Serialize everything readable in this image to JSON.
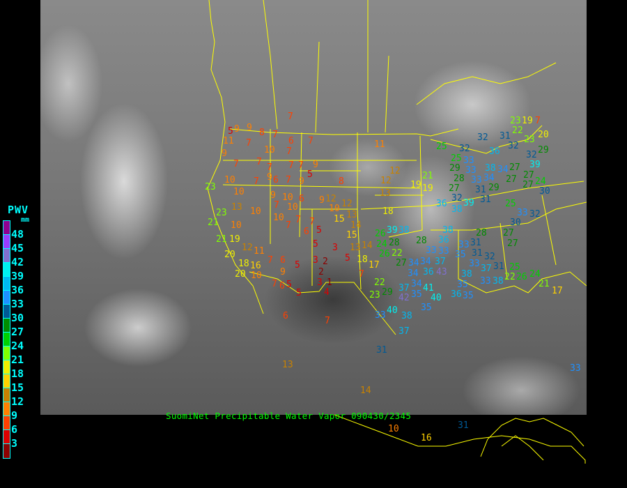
{
  "caption": "SuomiNet Precipitable Water Vapor 090430/2345",
  "legend": {
    "title": "PWV",
    "unit": "mm",
    "labels": [
      "48",
      "45",
      "42",
      "39",
      "36",
      "33",
      "30",
      "27",
      "24",
      "21",
      "18",
      "15",
      "12",
      "9",
      "6",
      "3"
    ],
    "colors_top_to_bottom": [
      "#900090",
      "#9a3cff",
      "#8070d0",
      "#00f0f0",
      "#00b8f0",
      "#1e90ff",
      "#005a96",
      "#008c00",
      "#00d000",
      "#80ff00",
      "#f0f000",
      "#ffd200",
      "#c88200",
      "#ff8000",
      "#ff4000",
      "#dc0000",
      "#8c0000"
    ]
  },
  "map": {
    "border_color": "#ffff00",
    "stations": [
      7,
      9,
      5,
      9,
      8,
      7,
      6,
      7,
      11,
      7,
      10,
      9,
      7,
      7,
      7,
      7,
      7,
      7,
      9,
      9,
      6,
      7,
      7,
      5,
      9,
      8,
      11,
      12,
      12,
      13,
      18,
      23,
      10,
      10,
      13,
      10,
      23,
      21,
      10,
      21,
      19,
      9,
      10,
      6,
      9,
      12,
      10,
      12,
      7,
      10,
      15,
      13,
      10,
      7,
      7,
      7,
      6,
      5,
      5,
      3,
      3,
      2,
      2,
      3,
      1,
      4,
      5,
      13,
      14,
      18,
      17,
      7,
      15,
      14,
      12,
      11,
      20,
      18,
      16,
      20,
      10,
      7,
      6,
      5,
      9,
      7,
      6,
      5,
      5,
      22,
      23,
      29,
      37,
      6,
      7,
      13,
      14,
      10,
      16,
      31,
      23,
      19,
      7,
      22,
      20,
      32,
      31,
      32,
      23,
      32,
      25,
      36,
      25,
      33,
      29,
      32,
      39,
      29,
      33,
      28,
      33,
      34,
      38,
      34,
      27,
      27,
      27,
      27,
      24,
      19,
      21,
      19,
      27,
      32,
      31,
      29,
      31,
      30,
      36,
      39,
      38,
      25,
      33,
      32,
      30,
      38,
      36,
      28,
      33,
      33,
      31,
      33,
      28,
      27,
      27,
      35,
      31,
      33,
      32,
      37,
      31,
      37,
      38,
      35,
      34,
      34,
      36,
      34,
      43,
      34,
      35,
      41,
      36,
      35,
      33,
      38,
      22,
      25,
      26,
      24,
      21,
      17,
      39,
      38,
      26,
      24,
      28,
      26,
      22,
      27,
      42,
      40,
      40,
      38,
      35,
      33,
      33,
      31,
      37
    ]
  }
}
